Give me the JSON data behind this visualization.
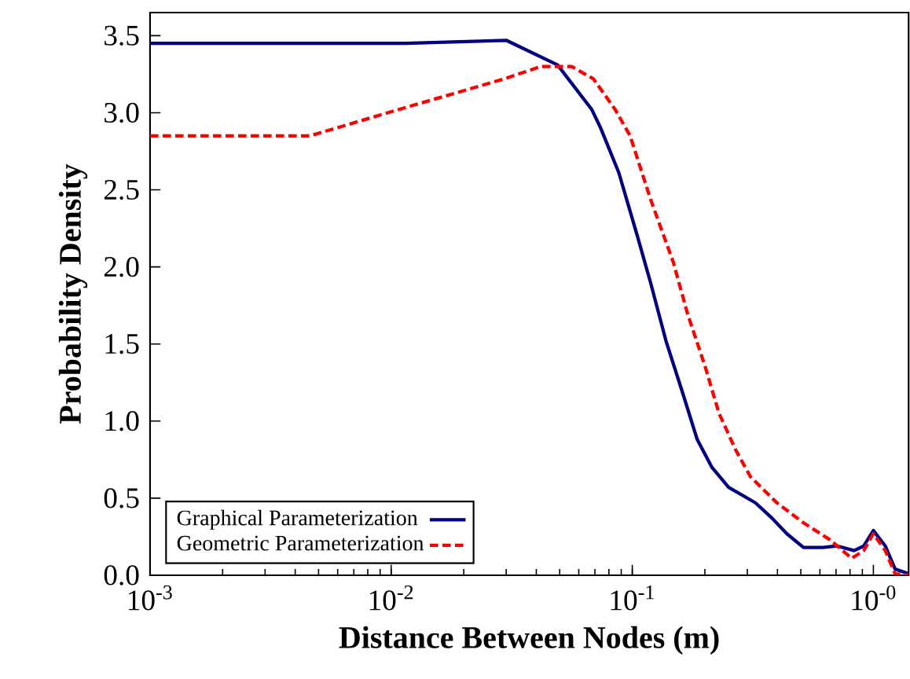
{
  "chart_data": {
    "type": "line",
    "xlabel": "Distance Between Nodes (m)",
    "ylabel": "Probability Density",
    "log": "x",
    "xlim": [
      0.001,
      1.4
    ],
    "ylim": [
      0,
      3.65
    ],
    "xticks": [
      {
        "value": 0.001,
        "label": "10$^{-3}$"
      },
      {
        "value": 0.01,
        "label": "10$^{-2}$"
      },
      {
        "value": 0.1,
        "label": "10$^{-1}$"
      },
      {
        "value": 1,
        "label": "10$^{-0}$"
      }
    ],
    "yticks": [
      {
        "value": 0,
        "label": "0.0"
      },
      {
        "value": 0.5,
        "label": "0.5"
      },
      {
        "value": 1,
        "label": "1.0"
      },
      {
        "value": 1.5,
        "label": "1.5"
      },
      {
        "value": 2,
        "label": "2.0"
      },
      {
        "value": 2.5,
        "label": "2.5"
      },
      {
        "value": 3,
        "label": "3.0"
      },
      {
        "value": 3.5,
        "label": "3.5"
      }
    ],
    "grid": false,
    "legend": "bottom left",
    "marker": "none",
    "series": [
      {
        "name": "Graphical Parameterization",
        "color": "#000080",
        "line_style": "solid",
        "x": [
          0.001,
          0.0115,
          0.03,
          0.049,
          0.068,
          0.074,
          0.088,
          0.105,
          0.119,
          0.138,
          0.162,
          0.186,
          0.214,
          0.251,
          0.324,
          0.38,
          0.437,
          0.513,
          0.617,
          0.708,
          0.832,
          0.912,
          1.0,
          1.12,
          1.23,
          1.4
        ],
        "values": [
          3.45,
          3.45,
          3.47,
          3.31,
          3.02,
          2.9,
          2.61,
          2.2,
          1.9,
          1.52,
          1.18,
          0.88,
          0.7,
          0.57,
          0.47,
          0.37,
          0.27,
          0.18,
          0.18,
          0.19,
          0.16,
          0.19,
          0.29,
          0.19,
          0.04,
          0.01
        ]
      },
      {
        "name": "Geometric Parameterization",
        "color": "#ff0000",
        "line_style": "dashed",
        "x": [
          0.001,
          0.0046,
          0.0107,
          0.0295,
          0.0417,
          0.056,
          0.069,
          0.085,
          0.098,
          0.119,
          0.148,
          0.17,
          0.2,
          0.229,
          0.269,
          0.309,
          0.398,
          0.513,
          0.661,
          0.813,
          0.912,
          1.0,
          1.12,
          1.23,
          1.4
        ],
        "values": [
          2.85,
          2.85,
          3.02,
          3.22,
          3.3,
          3.3,
          3.22,
          3.02,
          2.85,
          2.44,
          2.03,
          1.69,
          1.36,
          1.05,
          0.81,
          0.64,
          0.47,
          0.34,
          0.23,
          0.11,
          0.16,
          0.27,
          0.16,
          0.01,
          0.0
        ]
      }
    ]
  }
}
